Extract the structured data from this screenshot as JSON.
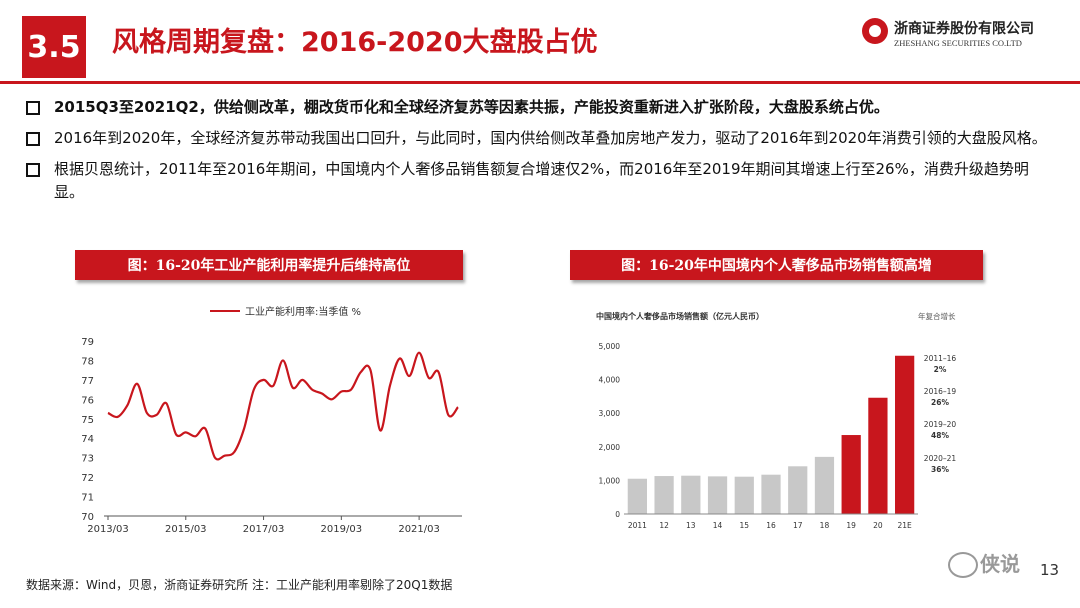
{
  "header": {
    "section_number": "3.5",
    "title": "风格周期复盘：2016-2020大盘股占优",
    "logo_cn": "浙商证券股份有限公司",
    "logo_en": "ZHESHANG SECURITIES CO.LTD"
  },
  "bullets": [
    "2015Q3至2021Q2，供给侧改革，棚改货币化和全球经济复苏等因素共振，产能投资重新进入扩张阶段，大盘股系统占优。",
    "2016年到2020年，全球经济复苏带动我国出口回升，与此同时，国内供给侧改革叠加房地产发力，驱动了2016年到2020年消费引领的大盘股风格。",
    "根据贝恩统计，2011年至2016年期间，中国境内个人奢侈品销售额复合增速仅2%，而2016年至2019年期间其增速上行至26%，消费升级趋势明显。"
  ],
  "banners": {
    "left": "图：16-20年工业产能利用率提升后维持高位",
    "right": "图：16-20年中国境内个人奢侈品市场销售额高增"
  },
  "chart_data": [
    {
      "type": "line",
      "legend": "工业产能利用率:当季值 %",
      "color": "#c8161d",
      "ylim": [
        70,
        79
      ],
      "yticks": [
        "79",
        "78",
        "77",
        "76",
        "75",
        "74",
        "73",
        "72",
        "71",
        "70"
      ],
      "xticks": [
        "2013/03",
        "2015/03",
        "2017/03",
        "2019/03",
        "2021/03"
      ],
      "x": [
        "2013Q1",
        "2013Q2",
        "2013Q3",
        "2013Q4",
        "2014Q1",
        "2014Q2",
        "2014Q3",
        "2014Q4",
        "2015Q1",
        "2015Q2",
        "2015Q3",
        "2015Q4",
        "2016Q1",
        "2016Q2",
        "2016Q3",
        "2016Q4",
        "2017Q1",
        "2017Q2",
        "2017Q3",
        "2017Q4",
        "2018Q1",
        "2018Q2",
        "2018Q3",
        "2018Q4",
        "2019Q1",
        "2019Q2",
        "2019Q3",
        "2019Q4",
        "2020Q2",
        "2020Q3",
        "2020Q4",
        "2021Q1",
        "2021Q2",
        "2021Q3",
        "2021Q4",
        "2022Q1",
        "2022Q2"
      ],
      "values": [
        75.3,
        75.1,
        75.7,
        76.8,
        75.3,
        75.2,
        75.8,
        74.2,
        74.3,
        74.1,
        74.5,
        73.0,
        73.1,
        73.3,
        74.5,
        76.5,
        77.0,
        76.7,
        78.0,
        76.6,
        77.0,
        76.5,
        76.3,
        76.0,
        76.4,
        76.5,
        77.4,
        77.5,
        74.4,
        76.7,
        78.1,
        77.2,
        78.4,
        77.1,
        77.4,
        75.2,
        75.6
      ]
    },
    {
      "type": "bar",
      "title": "中国境内个人奢侈品市场销售额（亿元人民币）",
      "annotation_header": "年复合增长",
      "categories": [
        "2011",
        "12",
        "13",
        "14",
        "15",
        "16",
        "17",
        "18",
        "19",
        "20",
        "21E"
      ],
      "values": [
        1050,
        1130,
        1140,
        1120,
        1110,
        1170,
        1420,
        1700,
        2350,
        3460,
        4710
      ],
      "highlight_from_index": 8,
      "colors": {
        "gray": "#c8c8c8",
        "red": "#c8161d"
      },
      "ylim": [
        0,
        5000
      ],
      "yticks": [
        "5,000",
        "4,000",
        "3,000",
        "2,000",
        "1,000",
        "0"
      ],
      "annotations": [
        {
          "period": "2011–16",
          "rate": "2%"
        },
        {
          "period": "2016–19",
          "rate": "26%"
        },
        {
          "period": "2019–20",
          "rate": "48%"
        },
        {
          "period": "2020–21",
          "rate": "36%"
        }
      ]
    }
  ],
  "footer": {
    "source": "数据来源：Wind，贝恩，浙商证券研究所 注：工业产能利用率剔除了20Q1数据",
    "page_number": "13",
    "watermark": "侠说"
  }
}
